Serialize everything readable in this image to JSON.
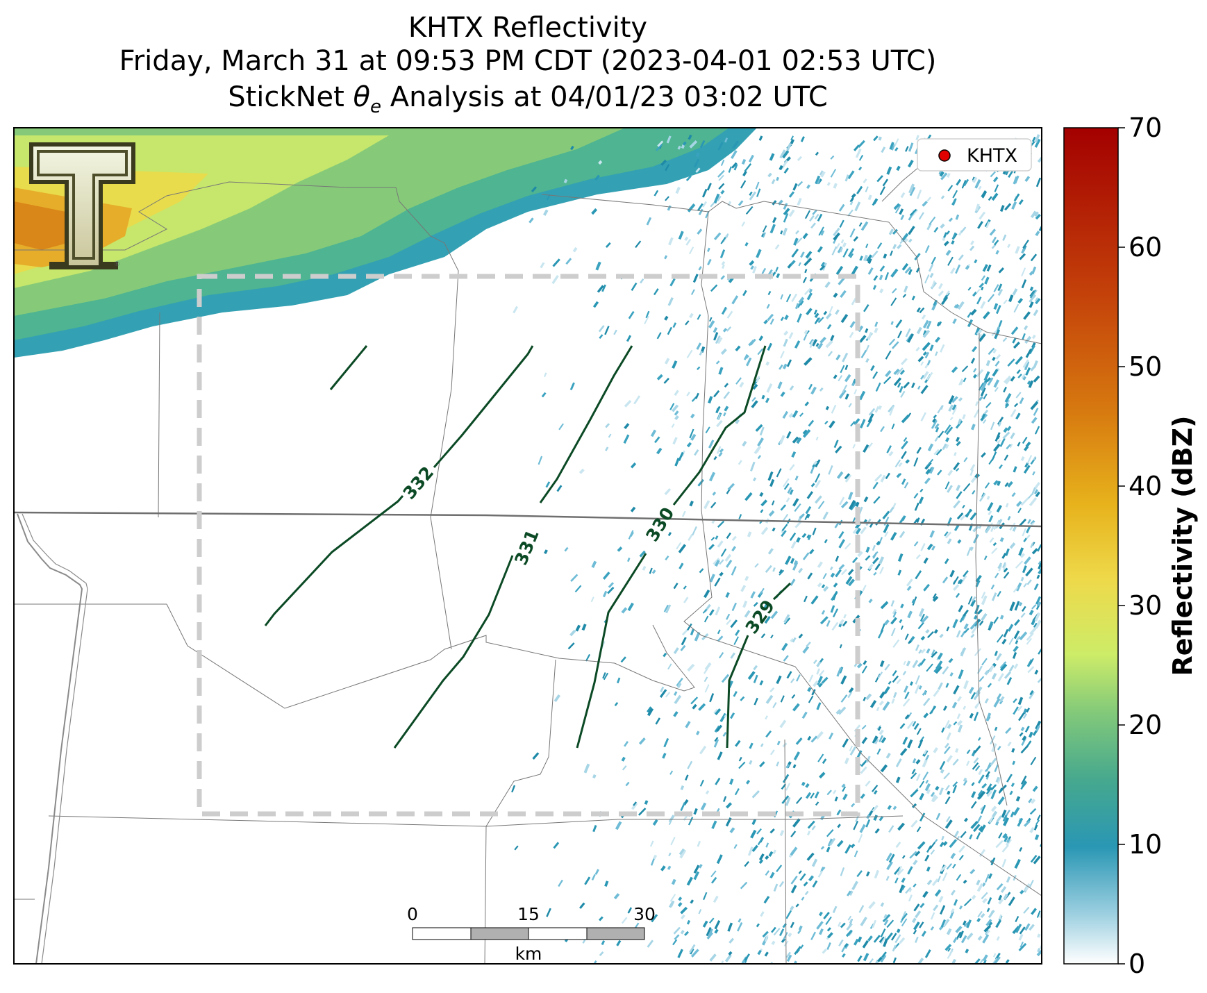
{
  "title": {
    "line1": "KHTX Reflectivity",
    "line2": "Friday, March 31 at 09:53 PM CDT (2023-04-01 02:53 UTC)",
    "line3_prefix": "StickNet ",
    "line3_symbol": "θ",
    "line3_subscript": "e",
    "line3_suffix": " Analysis at 04/01/23 03:02 UTC"
  },
  "legend": {
    "label": "KHTX",
    "marker_color": "#e00000"
  },
  "contours": [
    {
      "label": "332"
    },
    {
      "label": "331"
    },
    {
      "label": "330"
    },
    {
      "label": "329"
    }
  ],
  "contour_color": "#0b4a25",
  "scale_bar": {
    "ticks": [
      "0",
      "15",
      "30"
    ],
    "unit": "km"
  },
  "colorbar": {
    "label": "Reflectivity (dBZ)",
    "ticks": [
      "0",
      "10",
      "20",
      "30",
      "40",
      "50",
      "60",
      "70"
    ],
    "min": 0,
    "max": 70
  },
  "logo": {
    "name": "Texas Tech Double T",
    "letter": "T"
  }
}
